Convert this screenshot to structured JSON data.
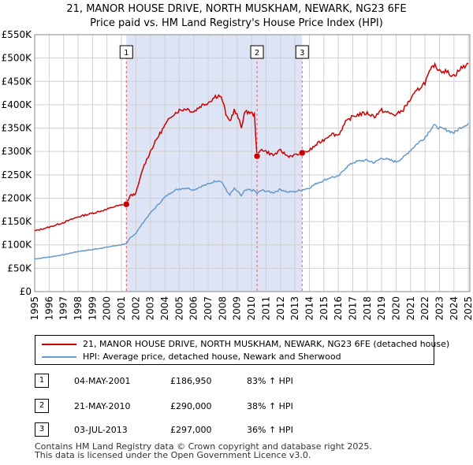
{
  "title_line1": "21, MANOR HOUSE DRIVE, NORTH MUSKHAM, NEWARK, NG23 6FE",
  "title_line2": "Price paid vs. HM Land Registry's House Price Index (HPI)",
  "colors": {
    "property": "#cc0000",
    "hpi": "#6699cc",
    "shade": "#dde4f5",
    "marker_line": "#e06060"
  },
  "chart_data": {
    "type": "line",
    "title": "Price paid vs. HM Land Registry's House Price Index (HPI)",
    "xlim": [
      1995,
      2025.1
    ],
    "ylim": [
      0,
      550000
    ],
    "y_ticks": [
      0,
      50000,
      100000,
      150000,
      200000,
      250000,
      300000,
      350000,
      400000,
      450000,
      500000,
      550000
    ],
    "y_tick_labels": [
      "£0",
      "£50K",
      "£100K",
      "£150K",
      "£200K",
      "£250K",
      "£300K",
      "£350K",
      "£400K",
      "£450K",
      "£500K",
      "£550K"
    ],
    "x_tick_labels": [
      "1995",
      "1996",
      "1997",
      "1998",
      "1999",
      "2000",
      "2001",
      "2002",
      "2003",
      "2004",
      "2005",
      "2006",
      "2007",
      "2008",
      "2009",
      "2010",
      "2011",
      "2012",
      "2013",
      "2014",
      "2015",
      "2016",
      "2017",
      "2018",
      "2019",
      "2020",
      "2021",
      "2022",
      "2023",
      "2024",
      "2025"
    ],
    "shaded_range": [
      2001.34,
      2013.5
    ],
    "series": [
      {
        "name": "21, MANOR HOUSE DRIVE, NORTH MUSKHAM, NEWARK, NG23 6FE (detached house)",
        "x": [
          1995,
          1996,
          1997,
          1998,
          1999,
          2000,
          2000.5,
          2001.34,
          2001.6,
          2002,
          2002.5,
          2003,
          2003.5,
          2004,
          2004.5,
          2005,
          2005.5,
          2006,
          2006.5,
          2007,
          2007.5,
          2007.8,
          2008,
          2008.3,
          2008.5,
          2008.8,
          2009,
          2009.3,
          2009.5,
          2009.8,
          2010.2,
          2010.38,
          2010.7,
          2011,
          2011.5,
          2012,
          2012.5,
          2013,
          2013.5,
          2014,
          2014.5,
          2015,
          2015.5,
          2016,
          2016.5,
          2017,
          2017.5,
          2018,
          2018.5,
          2019,
          2019.5,
          2020,
          2020.5,
          2021,
          2021.5,
          2022,
          2022.3,
          2022.6,
          2023,
          2023.5,
          2024,
          2024.5,
          2025
        ],
        "values": [
          130000,
          138000,
          148000,
          160000,
          168000,
          176000,
          182000,
          186950,
          205000,
          210000,
          265000,
          300000,
          330000,
          355000,
          378000,
          388000,
          392000,
          385000,
          398000,
          405000,
          418000,
          420000,
          408000,
          372000,
          365000,
          388000,
          378000,
          352000,
          382000,
          385000,
          378000,
          290000,
          305000,
          300000,
          292000,
          302000,
          290000,
          292000,
          297000,
          302000,
          315000,
          325000,
          338000,
          335000,
          362000,
          375000,
          380000,
          382000,
          375000,
          388000,
          382000,
          378000,
          390000,
          412000,
          432000,
          448000,
          468000,
          485000,
          475000,
          470000,
          462000,
          478000,
          488000
        ]
      },
      {
        "name": "HPI: Average price, detached house, Newark and Sherwood",
        "x": [
          1995,
          1996,
          1997,
          1998,
          1999,
          2000,
          2000.5,
          2001.34,
          2001.6,
          2002,
          2002.5,
          2003,
          2003.5,
          2004,
          2004.5,
          2005,
          2005.5,
          2006,
          2006.5,
          2007,
          2007.5,
          2007.8,
          2008,
          2008.3,
          2008.5,
          2008.8,
          2009,
          2009.3,
          2009.5,
          2009.8,
          2010.2,
          2010.38,
          2010.7,
          2011,
          2011.5,
          2012,
          2012.5,
          2013,
          2013.5,
          2014,
          2014.5,
          2015,
          2015.5,
          2016,
          2016.5,
          2017,
          2017.5,
          2018,
          2018.5,
          2019,
          2019.5,
          2020,
          2020.5,
          2021,
          2021.5,
          2022,
          2022.3,
          2022.6,
          2023,
          2023.5,
          2024,
          2024.5,
          2025
        ],
        "values": [
          70000,
          74000,
          79000,
          86000,
          90000,
          95000,
          98000,
          102000,
          115000,
          125000,
          148000,
          168000,
          185000,
          202000,
          214000,
          220000,
          222000,
          218000,
          225000,
          230000,
          237000,
          238000,
          232000,
          214000,
          208000,
          220000,
          215000,
          205000,
          215000,
          218000,
          216000,
          210000,
          217000,
          215000,
          212000,
          219000,
          213000,
          214000,
          218000,
          222000,
          232000,
          238000,
          245000,
          246000,
          265000,
          276000,
          280000,
          281000,
          276000,
          286000,
          282000,
          278000,
          287000,
          303000,
          318000,
          330000,
          344000,
          356000,
          350000,
          346000,
          340000,
          352000,
          360000
        ]
      }
    ],
    "sales": [
      {
        "n": "1",
        "x": 2001.34,
        "price": 186950
      },
      {
        "n": "2",
        "x": 2010.38,
        "price": 290000
      },
      {
        "n": "3",
        "x": 2013.5,
        "price": 297000
      }
    ]
  },
  "legend": {
    "property": "21, MANOR HOUSE DRIVE, NORTH MUSKHAM, NEWARK, NG23 6FE (detached house)",
    "hpi": "HPI: Average price, detached house, Newark and Sherwood"
  },
  "transactions": [
    {
      "n": "1",
      "date": "04-MAY-2001",
      "price": "£186,950",
      "hpi": "83% ↑ HPI"
    },
    {
      "n": "2",
      "date": "21-MAY-2010",
      "price": "£290,000",
      "hpi": "38% ↑ HPI"
    },
    {
      "n": "3",
      "date": "03-JUL-2013",
      "price": "£297,000",
      "hpi": "36% ↑ HPI"
    }
  ],
  "footer": {
    "line1": "Contains HM Land Registry data © Crown copyright and database right 2025.",
    "line2": "This data is licensed under the Open Government Licence v3.0."
  }
}
